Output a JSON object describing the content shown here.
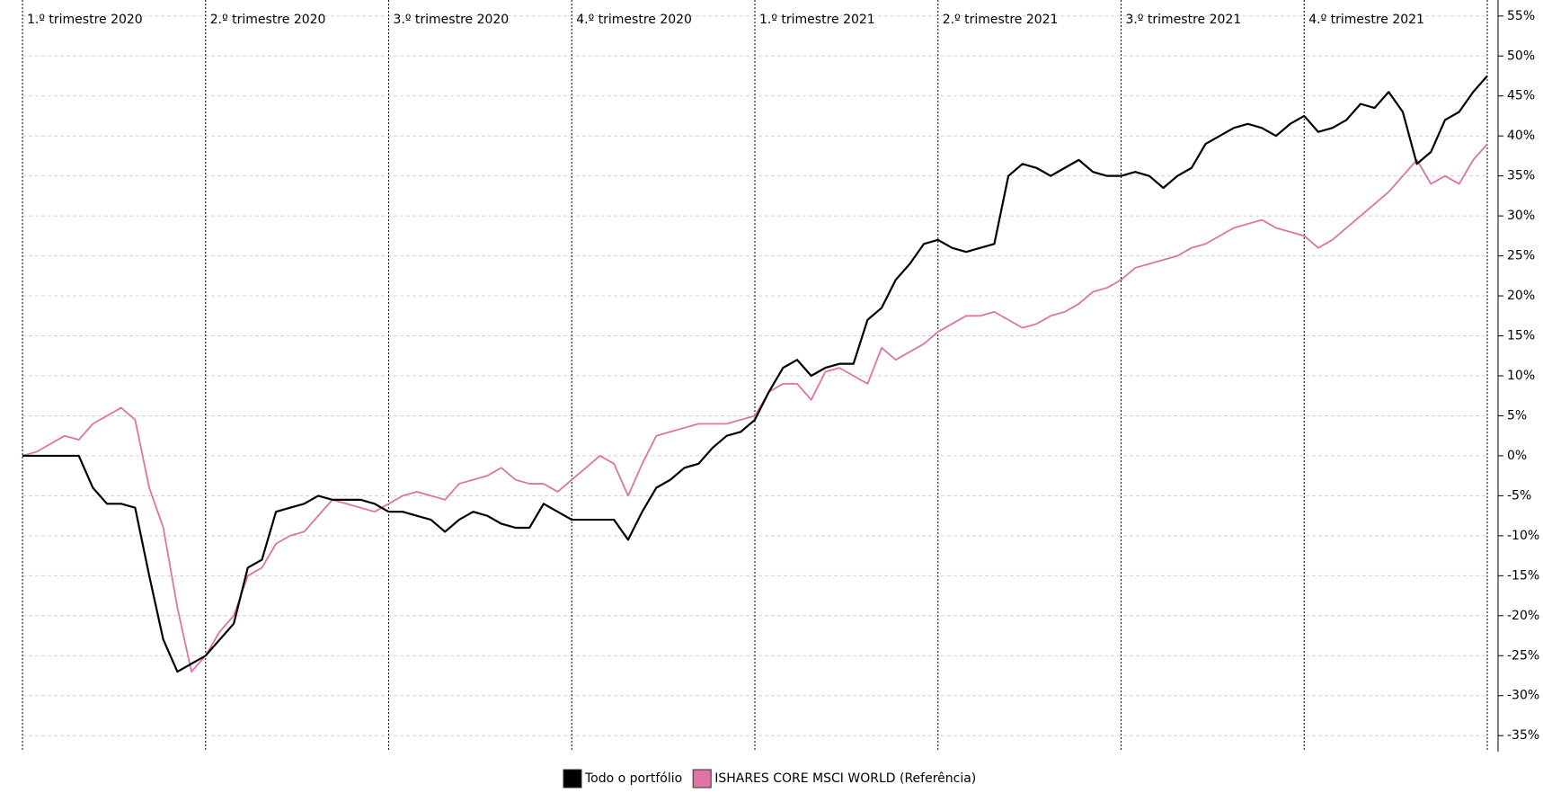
{
  "chart_data": {
    "type": "line",
    "x": [
      0,
      1,
      2,
      3,
      4,
      5,
      6,
      7,
      8,
      9,
      10,
      11,
      12,
      13,
      14,
      15,
      16,
      17,
      18,
      19,
      20,
      21,
      22,
      23,
      24,
      25,
      26,
      27,
      28,
      29,
      30,
      31,
      32,
      33,
      34,
      35,
      36,
      37,
      38,
      39,
      40,
      41,
      42,
      43,
      44,
      45,
      46,
      47,
      48,
      49,
      50,
      51,
      52,
      53,
      54,
      55,
      56,
      57,
      58,
      59,
      60,
      61,
      62,
      63,
      64,
      65,
      66,
      67,
      68,
      69,
      70,
      71,
      72,
      73,
      74,
      75,
      76,
      77,
      78,
      79,
      80,
      81,
      82,
      83,
      84,
      85,
      86,
      87,
      88,
      89,
      90,
      91,
      92,
      93,
      94,
      95,
      96,
      97,
      98,
      99,
      100,
      101,
      102,
      103,
      104
    ],
    "series": [
      {
        "name": "Todo o portfólio",
        "color": "#000000",
        "values": [
          0,
          0,
          0,
          0,
          0,
          -4,
          -6,
          -6,
          -6.5,
          -15,
          -23,
          -27,
          -26,
          -25,
          -23,
          -21,
          -14,
          -13,
          -7,
          -6.5,
          -6,
          -5,
          -5.5,
          -5.5,
          -5.5,
          -6,
          -7,
          -7,
          -7.5,
          -8,
          -9.5,
          -8,
          -7,
          -7.5,
          -8.5,
          -9,
          -9,
          -6,
          -7,
          -8,
          -8,
          -8,
          -8,
          -10.5,
          -7,
          -4,
          -3,
          -1.5,
          -1,
          1,
          2.5,
          3,
          4.5,
          8,
          11,
          12,
          10,
          11,
          11.5,
          11.5,
          17,
          18.5,
          22,
          24,
          26.5,
          27,
          26,
          25.5,
          26,
          26.5,
          35,
          36.5,
          36,
          35,
          36,
          37,
          35.5,
          35,
          35,
          35.5,
          35,
          33.5,
          35,
          36,
          39,
          40,
          41,
          41.5,
          41,
          40,
          41.5,
          42.5,
          40.5,
          41,
          42,
          44,
          43.5,
          45.5,
          43,
          36.5,
          38,
          42,
          43,
          45.5,
          47.5
        ]
      },
      {
        "name": "ISHARES CORE MSCI WORLD (Referência)",
        "color": "#e072a4",
        "values": [
          0,
          0.5,
          1.5,
          2.5,
          2,
          4,
          5,
          6,
          4.5,
          -4,
          -9,
          -19,
          -27,
          -25,
          -22,
          -20,
          -15,
          -14,
          -11,
          -10,
          -9.5,
          -7.5,
          -5.5,
          -6,
          -6.5,
          -7,
          -6,
          -5,
          -4.5,
          -5,
          -5.5,
          -3.5,
          -3,
          -2.5,
          -1.5,
          -3,
          -3.5,
          -3.5,
          -4.5,
          -3,
          -1.5,
          0,
          -1,
          -5,
          -1,
          2.5,
          3,
          3.5,
          4,
          4,
          4,
          4.5,
          5,
          8,
          9,
          9,
          7,
          10.5,
          11,
          10,
          9,
          13.5,
          12,
          13,
          14,
          15.5,
          16.5,
          17.5,
          17.5,
          18,
          17,
          16,
          16.5,
          17.5,
          18,
          19,
          20.5,
          21,
          22,
          23.5,
          24,
          24.5,
          25,
          26,
          26.5,
          27.5,
          28.5,
          29,
          29.5,
          28.5,
          28,
          27.5,
          26,
          27,
          28.5,
          30,
          31.5,
          33,
          35,
          37,
          34,
          35,
          34,
          37,
          39
        ]
      }
    ],
    "xlim": [
      0,
      104
    ],
    "xticks": [
      {
        "value": 0,
        "label": "1.º trimestre 2020"
      },
      {
        "value": 13,
        "label": "2.º trimestre 2020"
      },
      {
        "value": 26,
        "label": "3.º trimestre 2020"
      },
      {
        "value": 39,
        "label": "4.º trimestre 2020"
      },
      {
        "value": 52,
        "label": "1.º trimestre 2021"
      },
      {
        "value": 65,
        "label": "2.º trimestre 2021"
      },
      {
        "value": 78,
        "label": "3.º trimestre 2021"
      },
      {
        "value": 91,
        "label": "4.º trimestre 2021"
      }
    ],
    "ylim": [
      -37,
      57
    ],
    "yticks": [
      {
        "value": 55,
        "label": "55%"
      },
      {
        "value": 50,
        "label": "50%"
      },
      {
        "value": 45,
        "label": "45%"
      },
      {
        "value": 40,
        "label": "40%"
      },
      {
        "value": 35,
        "label": "35%"
      },
      {
        "value": 30,
        "label": "30%"
      },
      {
        "value": 25,
        "label": "25%"
      },
      {
        "value": 20,
        "label": "20%"
      },
      {
        "value": 15,
        "label": "15%"
      },
      {
        "value": 10,
        "label": "10%"
      },
      {
        "value": 5,
        "label": "5%"
      },
      {
        "value": 0,
        "label": "0%"
      },
      {
        "value": -5,
        "label": "-5%"
      },
      {
        "value": -10,
        "label": "-10%"
      },
      {
        "value": -15,
        "label": "-15%"
      },
      {
        "value": -20,
        "label": "-20%"
      },
      {
        "value": -25,
        "label": "-25%"
      },
      {
        "value": -30,
        "label": "-30%"
      },
      {
        "value": -35,
        "label": "-35%"
      }
    ],
    "grid": true,
    "legend": "bottom"
  }
}
